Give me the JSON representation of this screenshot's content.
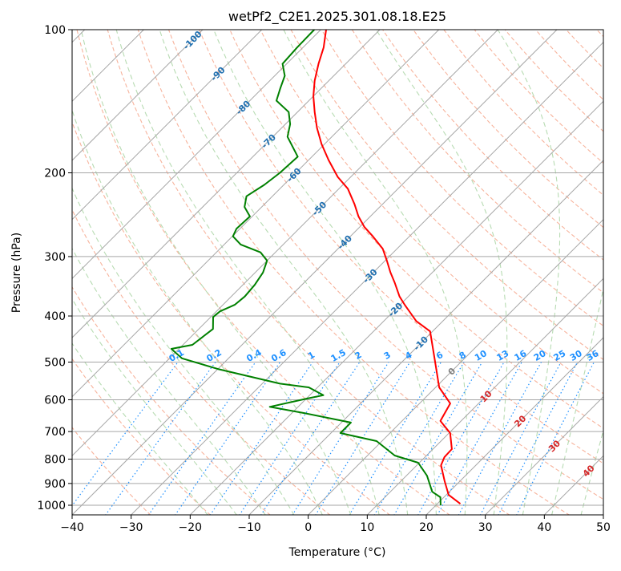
{
  "chart_data": {
    "type": "line",
    "subtype": "skew-t log-p",
    "title": "wetPf2_C2E1.2025.301.08.18.E25",
    "xlabel": "Temperature (°C)",
    "ylabel": "Pressure (hPa)",
    "xlim": [
      -40,
      50
    ],
    "ylim": [
      1050,
      100
    ],
    "x_ticks": [
      -40,
      -30,
      -20,
      -10,
      0,
      10,
      20,
      30,
      40,
      50
    ],
    "y_ticks": [
      100,
      200,
      300,
      400,
      500,
      600,
      700,
      800,
      900,
      1000
    ],
    "grid": true,
    "isotherm_labels": [
      -100,
      -90,
      -80,
      -70,
      -60,
      -50,
      -40,
      -30,
      -20,
      -10,
      0,
      10,
      20,
      30,
      40
    ],
    "mixing_ratio_labels": [
      "0.1",
      "0.2",
      "0.4",
      "0.6",
      "1",
      "1.5",
      "2",
      "3",
      "4",
      "6",
      "8",
      "10",
      "13",
      "16",
      "20",
      "25",
      "30",
      "36"
    ],
    "dry_adiabats_theta_c": [
      -30,
      -20,
      -10,
      0,
      10,
      20,
      30,
      40,
      50,
      60,
      70,
      80,
      90,
      100,
      110,
      120,
      130,
      140,
      150,
      160,
      170,
      180,
      190,
      200,
      210,
      220
    ],
    "moist_adiabats_t0_c": [
      -20,
      -15,
      -10,
      -5,
      0,
      5,
      10,
      15,
      20,
      25,
      30,
      35,
      40,
      45
    ],
    "colors": {
      "temperature": "#ff0000",
      "dewpoint": "#008000",
      "isotherm": "#a6a6a6",
      "dry_adiabat": "#f7b39c",
      "moist_adiabat": "#b7dbb2",
      "mixing_ratio": "#1e90ff",
      "label_negative": "#1f6fb0",
      "label_zero": "#808080",
      "label_positive": "#d62728"
    },
    "series": [
      {
        "name": "Temperature",
        "pressure_hpa": [
          100,
          109,
          118,
          128,
          138,
          149,
          161,
          174,
          188,
          204,
          216,
          233,
          247,
          260,
          272,
          289,
          306,
          324,
          340,
          364,
          379,
          410,
          431,
          491,
          565,
          611,
          665,
          705,
          762,
          792,
          824,
          890,
          951,
          993
        ],
        "temperature_c": [
          -79.1,
          -76.5,
          -74.6,
          -72.4,
          -70.0,
          -67.1,
          -64.0,
          -60.5,
          -56.6,
          -52.2,
          -48.5,
          -44.7,
          -42.0,
          -39.2,
          -36.2,
          -32.4,
          -29.7,
          -27.1,
          -24.7,
          -21.5,
          -19.2,
          -14.5,
          -10.4,
          -5.1,
          0.6,
          5.2,
          6.5,
          10.2,
          13.2,
          13.3,
          14.1,
          17.4,
          20.4,
          23.9
        ]
      },
      {
        "name": "Dewpoint",
        "pressure_hpa": [
          100,
          109,
          118,
          125,
          133,
          141,
          149,
          158,
          168,
          185,
          200,
          212,
          224,
          236,
          247,
          262,
          272,
          283,
          294,
          306,
          324,
          344,
          364,
          379,
          391,
          402,
          426,
          443,
          460,
          469,
          491,
          517,
          555,
          565,
          587,
          598,
          621,
          640,
          670,
          705,
          733,
          786,
          814,
          867,
          937,
          962,
          1000
        ],
        "temperature_c": [
          -81.1,
          -81.0,
          -80.7,
          -78.3,
          -76.9,
          -75.5,
          -71.5,
          -69.2,
          -67.5,
          -62.4,
          -62.7,
          -63.3,
          -64.4,
          -62.9,
          -60.4,
          -60.6,
          -59.9,
          -57.2,
          -52.5,
          -50.0,
          -48.7,
          -48.0,
          -47.7,
          -48.0,
          -49.4,
          -49.6,
          -47.6,
          -48.0,
          -48.4,
          -51.3,
          -47.9,
          -40.0,
          -27.0,
          -21.5,
          -17.7,
          -20.2,
          -24.8,
          -17.9,
          -8.4,
          -8.4,
          -0.9,
          4.6,
          9.8,
          13.5,
          17.1,
          19.4,
          20.8
        ]
      }
    ]
  }
}
